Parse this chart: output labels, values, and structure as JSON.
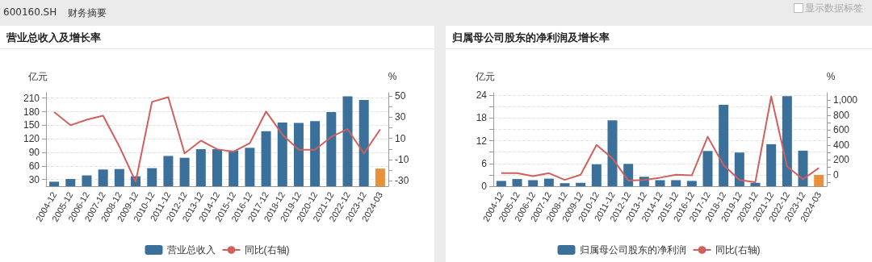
{
  "chart_data": [
    {
      "type": "bar",
      "title": "营业总收入及增长率",
      "ylabel": "亿元",
      "y2label": "%",
      "annotations": [
        "600160.SH",
        "财务摘要",
        "显示数据标签"
      ],
      "categories": [
        "2004-12",
        "2005-12",
        "2006-12",
        "2007-12",
        "2008-12",
        "2009-12",
        "2010-12",
        "2011-12",
        "2012-12",
        "2013-12",
        "2014-12",
        "2015-12",
        "2016-12",
        "2017-12",
        "2018-12",
        "2019-12",
        "2020-12",
        "2021-12",
        "2022-12",
        "2023-12",
        "2024-03"
      ],
      "series": [
        {
          "name": "营业总收入",
          "color": "#3a7099",
          "colors": [
            "#3a7099",
            "#3a7099",
            "#3a7099",
            "#3a7099",
            "#3a7099",
            "#3a7099",
            "#3a7099",
            "#3a7099",
            "#3a7099",
            "#3a7099",
            "#3a7099",
            "#3a7099",
            "#3a7099",
            "#3a7099",
            "#3a7099",
            "#3a7099",
            "#3a7099",
            "#3a7099",
            "#3a7099",
            "#3a7099",
            "#e8913a"
          ],
          "values": [
            25,
            31,
            39,
            52,
            53,
            37,
            55,
            82,
            78,
            97,
            97,
            94,
            100,
            137,
            156,
            155,
            159,
            179,
            214,
            206,
            54
          ]
        },
        {
          "name": "同比(右轴)",
          "type": "line",
          "axis": "y2",
          "color": "#d0605e",
          "values": [
            34.8,
            22.4,
            27.6,
            31.4,
            2.4,
            -30.8,
            44.4,
            48.8,
            -4.1,
            7.9,
            -0.2,
            -2.5,
            5.5,
            35.3,
            13.6,
            -0.7,
            -0.7,
            11.5,
            18.7,
            -4.1,
            18.5
          ]
        }
      ],
      "ylim": [
        15,
        222
      ],
      "yticks": [
        30,
        60,
        90,
        120,
        150,
        180,
        210
      ],
      "y2lim": [
        -35,
        53
      ],
      "y2ticks": [
        -30,
        {
          "value": -20,
          "label": null
        },
        -10,
        {
          "value": 0,
          "label": null
        },
        10,
        {
          "value": 20,
          "label": null
        },
        30,
        {
          "value": 40,
          "label": null
        },
        50
      ],
      "grid": "y",
      "legend": "bottom",
      "marker": "none"
    },
    {
      "type": "bar",
      "title": "归属母公司股东的净利润及增长率",
      "ylabel": "亿元",
      "y2label": "%",
      "categories": [
        "2004-12",
        "2005-12",
        "2006-12",
        "2007-12",
        "2008-12",
        "2009-12",
        "2010-12",
        "2011-12",
        "2012-12",
        "2013-12",
        "2014-12",
        "2015-12",
        "2016-12",
        "2017-12",
        "2018-12",
        "2019-12",
        "2020-12",
        "2021-12",
        "2022-12",
        "2023-12",
        "2024-03"
      ],
      "series": [
        {
          "name": "归属母公司股东的净利润",
          "color": "#3a7099",
          "colors": [
            "#3a7099",
            "#3a7099",
            "#3a7099",
            "#3a7099",
            "#3a7099",
            "#3a7099",
            "#3a7099",
            "#3a7099",
            "#3a7099",
            "#3a7099",
            "#3a7099",
            "#3a7099",
            "#3a7099",
            "#3a7099",
            "#3a7099",
            "#3a7099",
            "#3a7099",
            "#3a7099",
            "#3a7099",
            "#3a7099",
            "#e8913a"
          ],
          "values": [
            1.4,
            1.9,
            1.6,
            2.0,
            0.8,
            0.9,
            5.8,
            17.4,
            5.9,
            2.5,
            1.6,
            1.6,
            1.4,
            9.3,
            21.5,
            8.9,
            0.9,
            11.1,
            23.8,
            9.4,
            3.0
          ]
        },
        {
          "name": "同比(右轴)",
          "type": "line",
          "axis": "y2",
          "color": "#d0605e",
          "values": [
            20,
            20,
            -20,
            20,
            -70,
            0,
            400,
            220,
            -80,
            -70,
            -40,
            0,
            -10,
            510,
            130,
            -70,
            -100,
            1050,
            110,
            -60,
            90
          ]
        }
      ],
      "ylim": [
        0,
        24.7
      ],
      "yticks": [
        0,
        {
          "value": 3,
          "label": null
        },
        6,
        {
          "value": 9,
          "label": null
        },
        12,
        {
          "value": 15,
          "label": null
        },
        18,
        {
          "value": 21,
          "label": null
        },
        24
      ],
      "y2lim": [
        -155,
        1102
      ],
      "y2ticks": [
        {
          "value": -100,
          "label": null
        },
        0,
        {
          "value": 100,
          "label": null
        },
        200,
        {
          "value": 300,
          "label": null
        },
        400,
        {
          "value": 500,
          "label": null
        },
        600,
        {
          "value": 700,
          "label": null
        },
        800,
        {
          "value": 900,
          "label": null
        },
        {
          "value": 1000,
          "label": "1,000"
        }
      ],
      "grid": "y",
      "legend": "bottom",
      "marker": "none"
    }
  ]
}
